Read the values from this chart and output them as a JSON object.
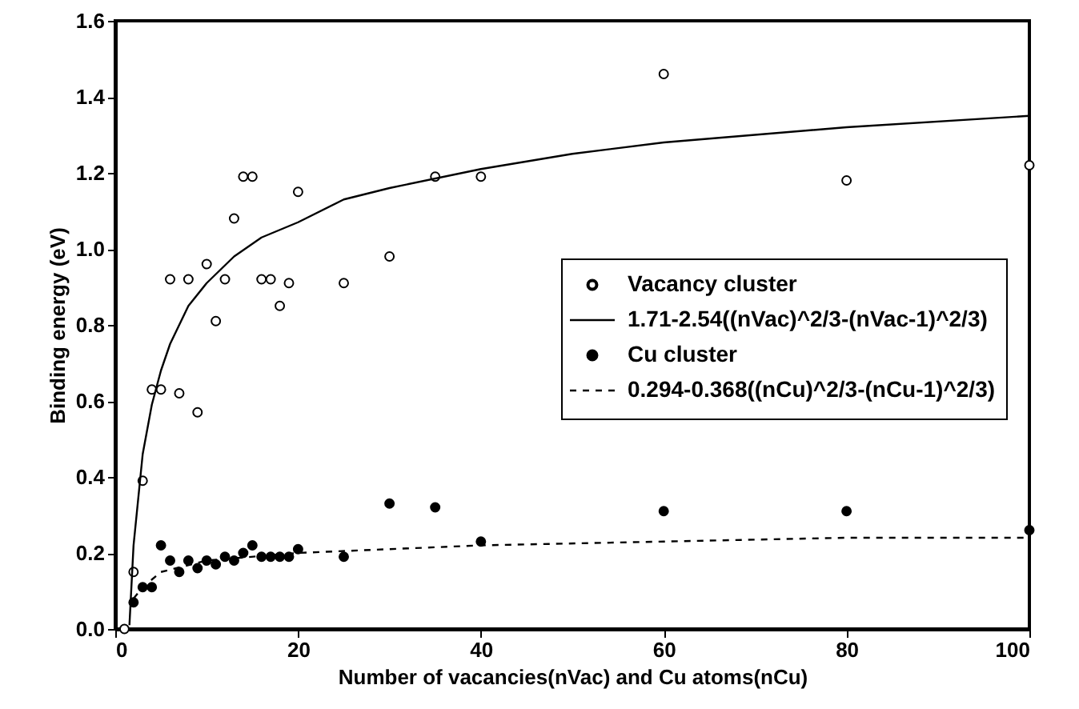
{
  "chart_data": {
    "type": "scatter",
    "xlabel": "Number of vacancies(nVac) and Cu atoms(nCu)",
    "ylabel": "Binding energy (eV)",
    "xlim": [
      0,
      100
    ],
    "xticks": [
      0,
      20,
      40,
      60,
      80,
      100
    ],
    "ylim": [
      0,
      1.6
    ],
    "yticks": [
      {
        "value": 0,
        "label": "0.0"
      },
      {
        "value": 0.2,
        "label": "0.2"
      },
      {
        "value": 0.4,
        "label": "0.4"
      },
      {
        "value": 0.6,
        "label": "0.6"
      },
      {
        "value": 0.8,
        "label": "0.8"
      },
      {
        "value": 1.0,
        "label": "1.0"
      },
      {
        "value": 1.2,
        "label": "1.2"
      },
      {
        "value": 1.4,
        "label": "1.4"
      },
      {
        "value": 1.6,
        "label": "1.6"
      }
    ],
    "grid": false,
    "legend": "right",
    "series": [
      {
        "name": "Vacancy cluster",
        "type": "scatter",
        "marker": "circle",
        "color": "#000000",
        "x": [
          1,
          2,
          3,
          4,
          5,
          6,
          7,
          8,
          9,
          10,
          11,
          12,
          13,
          14,
          15,
          16,
          17,
          18,
          19,
          20,
          25,
          30,
          35,
          40,
          60,
          80,
          100
        ],
        "values": [
          0.0,
          0.15,
          0.39,
          0.63,
          0.63,
          0.92,
          0.62,
          0.92,
          0.57,
          0.96,
          0.81,
          0.92,
          1.08,
          1.19,
          1.19,
          0.92,
          0.92,
          0.85,
          0.91,
          1.15,
          0.91,
          0.98,
          1.19,
          1.19,
          1.46,
          1.18,
          1.22
        ]
      },
      {
        "name": "1.71-2.54((nVac)^2/3-(nVac-1)^2/3)",
        "type": "line",
        "line_style": "solid",
        "marker": "none",
        "color": "#000000",
        "x": [
          1.55,
          2,
          3,
          4,
          5,
          6,
          8,
          10,
          13,
          16,
          20,
          25,
          30,
          40,
          50,
          60,
          80,
          100
        ],
        "values": [
          0.01,
          0.22,
          0.46,
          0.59,
          0.68,
          0.75,
          0.85,
          0.91,
          0.98,
          1.03,
          1.07,
          1.13,
          1.16,
          1.21,
          1.25,
          1.28,
          1.32,
          1.35
        ]
      },
      {
        "name": "Cu cluster",
        "type": "scatter",
        "marker": "circle",
        "color": "#000000",
        "x": [
          2,
          3,
          4,
          5,
          6,
          7,
          8,
          9,
          10,
          11,
          12,
          13,
          14,
          15,
          16,
          17,
          18,
          19,
          20,
          25,
          30,
          35,
          40,
          60,
          80,
          100
        ],
        "values": [
          0.07,
          0.11,
          0.11,
          0.22,
          0.18,
          0.15,
          0.18,
          0.16,
          0.18,
          0.17,
          0.19,
          0.18,
          0.2,
          0.22,
          0.19,
          0.19,
          0.19,
          0.19,
          0.21,
          0.19,
          0.33,
          0.32,
          0.23,
          0.31,
          0.31,
          0.26
        ]
      },
      {
        "name": "0.294-0.368((nCu)^2/3-(nCu-1)^2/3)",
        "type": "line",
        "line_style": "dashed",
        "marker": "none",
        "color": "#000000",
        "x": [
          2,
          3,
          5,
          10,
          20,
          40,
          60,
          80,
          100
        ],
        "values": [
          0.08,
          0.11,
          0.15,
          0.18,
          0.2,
          0.22,
          0.23,
          0.24,
          0.24
        ]
      }
    ]
  }
}
